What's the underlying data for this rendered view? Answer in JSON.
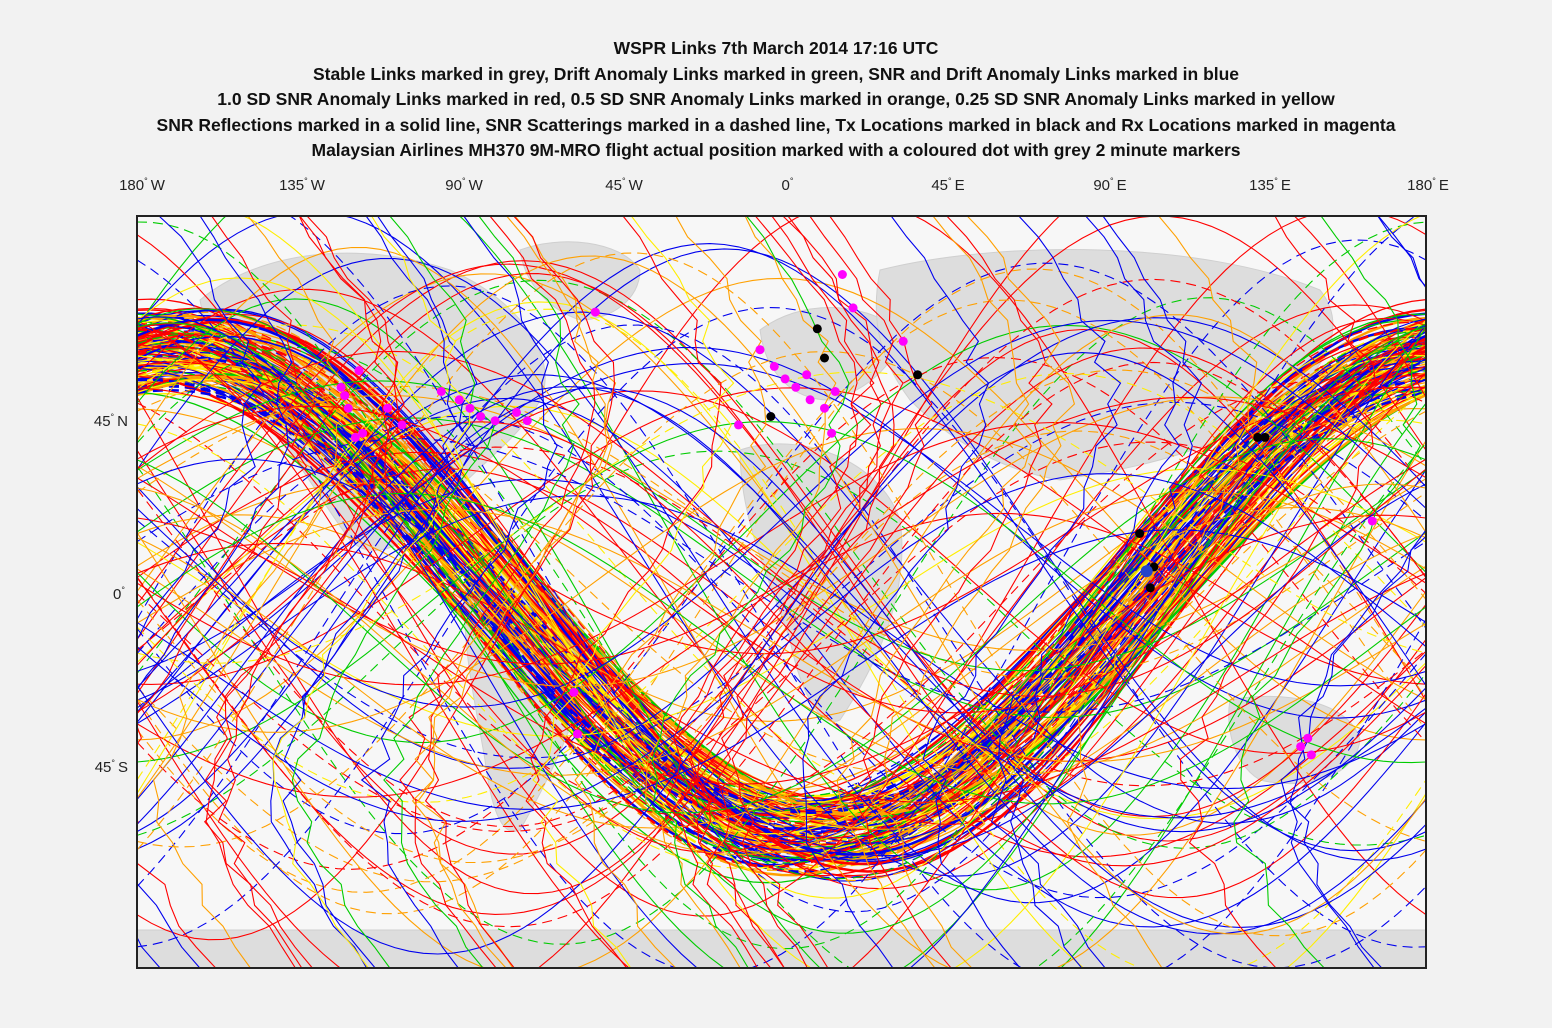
{
  "title": {
    "line1": "WSPR Links 7th March 2014 17:16 UTC",
    "line2": "Stable Links marked in grey, Drift Anomaly Links marked in green, SNR and Drift Anomaly Links marked in blue",
    "line3": "1.0 SD SNR Anomaly Links marked in red, 0.5 SD SNR Anomaly Links marked in orange, 0.25 SD SNR Anomaly Links marked in yellow",
    "line4": "SNR Reflections marked in a solid line, SNR Scatterings marked in a dashed line, Tx Locations marked in black and Rx Locations marked in magenta",
    "line5": "Malaysian Airlines MH370 9M-MRO flight actual position marked with a coloured dot with grey 2 minute markers"
  },
  "axes": {
    "lon_ticks": [
      {
        "num": "180",
        "hemi": "W"
      },
      {
        "num": "135",
        "hemi": "W"
      },
      {
        "num": "90",
        "hemi": "W"
      },
      {
        "num": "45",
        "hemi": "W"
      },
      {
        "num": "0",
        "hemi": ""
      },
      {
        "num": "45",
        "hemi": "E"
      },
      {
        "num": "90",
        "hemi": "E"
      },
      {
        "num": "135",
        "hemi": "E"
      },
      {
        "num": "180",
        "hemi": "E"
      }
    ],
    "lat_ticks": [
      {
        "num": "45",
        "hemi": "N"
      },
      {
        "num": "0",
        "hemi": ""
      },
      {
        "num": "45",
        "hemi": "S"
      }
    ],
    "lon_range": [
      -180,
      180
    ],
    "lat_range": [
      -90,
      90
    ]
  },
  "colors": {
    "stable": "#999999",
    "drift_anomaly": "#00cc00",
    "snr_drift_anomaly": "#0000ee",
    "sd_1_0": "#ff0000",
    "sd_0_5": "#ffa000",
    "sd_0_25": "#ffee00",
    "tx": "#000000",
    "rx": "#ff00ff",
    "flight": "#2244cc",
    "land": "#dddddd",
    "ocean": "#f7f7f7"
  },
  "map_data": {
    "tx_locations": [
      {
        "lon": 10,
        "lat": 63
      },
      {
        "lon": 38,
        "lat": 52
      },
      {
        "lon": 133,
        "lat": 37
      },
      {
        "lon": 135,
        "lat": 37
      },
      {
        "lon": 100,
        "lat": 14
      },
      {
        "lon": 104,
        "lat": 6
      },
      {
        "lon": 103,
        "lat": 1
      },
      {
        "lon": -3,
        "lat": 42
      },
      {
        "lon": 12,
        "lat": 56
      }
    ],
    "rx_locations": [
      {
        "lon": -123,
        "lat": 49
      },
      {
        "lon": -118,
        "lat": 53
      },
      {
        "lon": -122,
        "lat": 47
      },
      {
        "lon": -121,
        "lat": 44
      },
      {
        "lon": -117,
        "lat": 38
      },
      {
        "lon": -119,
        "lat": 37
      },
      {
        "lon": -110,
        "lat": 44
      },
      {
        "lon": -106,
        "lat": 40
      },
      {
        "lon": -95,
        "lat": 48
      },
      {
        "lon": -90,
        "lat": 46
      },
      {
        "lon": -87,
        "lat": 44
      },
      {
        "lon": -84,
        "lat": 42
      },
      {
        "lon": -80,
        "lat": 41
      },
      {
        "lon": -74,
        "lat": 43
      },
      {
        "lon": -71,
        "lat": 41
      },
      {
        "lon": -52,
        "lat": 67
      },
      {
        "lon": -6,
        "lat": 58
      },
      {
        "lon": -2,
        "lat": 54
      },
      {
        "lon": 1,
        "lat": 51
      },
      {
        "lon": 4,
        "lat": 49
      },
      {
        "lon": 7,
        "lat": 52
      },
      {
        "lon": 8,
        "lat": 46
      },
      {
        "lon": 12,
        "lat": 44
      },
      {
        "lon": 15,
        "lat": 48
      },
      {
        "lon": 17,
        "lat": 76
      },
      {
        "lon": 20,
        "lat": 68
      },
      {
        "lon": 34,
        "lat": 60
      },
      {
        "lon": 14,
        "lat": 38
      },
      {
        "lon": -12,
        "lat": 40
      },
      {
        "lon": 165,
        "lat": 17
      },
      {
        "lon": 147,
        "lat": -35
      },
      {
        "lon": 145,
        "lat": -37
      },
      {
        "lon": 148,
        "lat": -39
      },
      {
        "lon": -58,
        "lat": -24
      },
      {
        "lon": -57,
        "lat": -34
      }
    ],
    "flight_position": {
      "lon": 102,
      "lat": 5
    }
  }
}
